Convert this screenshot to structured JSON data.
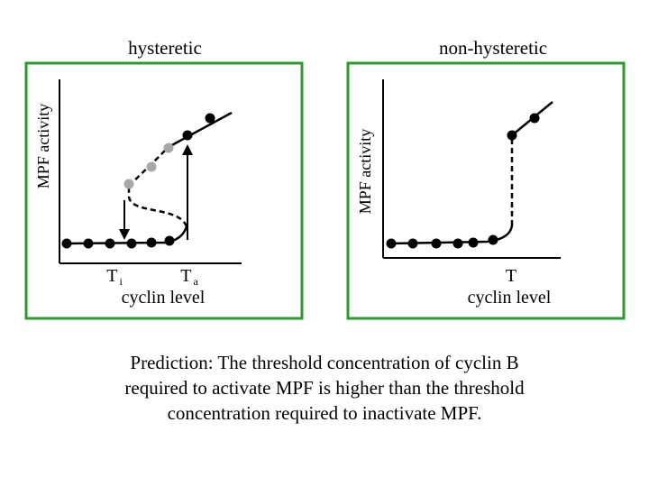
{
  "colors": {
    "frame": "#2e9a2e",
    "line": "#000000",
    "dot_dark": "#000000",
    "dot_light": "#a8a8a8"
  },
  "panels": {
    "left": {
      "title": "hysteretic",
      "ylabel": "MPF activity",
      "tick_activate": {
        "main": "T",
        "sub": "a"
      },
      "tick_inactivate": {
        "main": "T",
        "sub": "i"
      },
      "xlabel": "cyclin level"
    },
    "right": {
      "title": "non-hysteretic",
      "ylabel": "MPF activity",
      "tick": "T",
      "xlabel": "cyclin level"
    }
  },
  "caption": {
    "line1": "Prediction: The threshold concentration of cyclin B",
    "line2": "required to activate MPF is higher than the threshold",
    "line3": "concentration required to inactivate MPF."
  }
}
